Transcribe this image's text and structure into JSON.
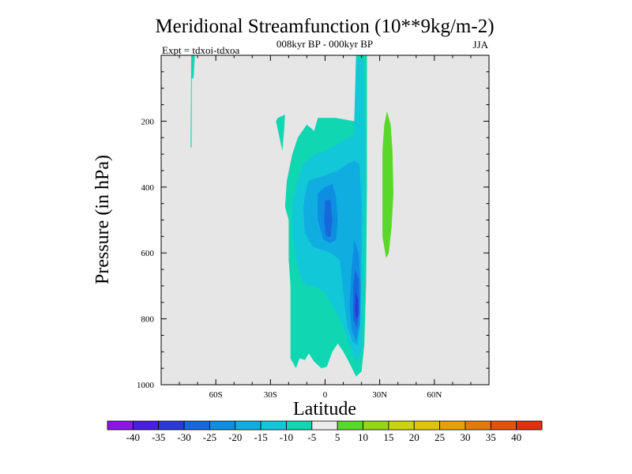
{
  "chart_data": {
    "type": "contour",
    "title": "Meridional Streamfunction (10**9kg/m-2)",
    "subtitle_center": "008kyr BP - 000kyr BP",
    "subtitle_left": "Expt = tdxoi-tdxoa",
    "subtitle_right": "JJA",
    "xlabel": "Latitude",
    "ylabel": "Pressure (in hPa)",
    "xlim": [
      -90,
      90
    ],
    "ylim": [
      1000,
      0
    ],
    "x_ticks": [
      {
        "value": -60,
        "label": "60S"
      },
      {
        "value": -30,
        "label": "30S"
      },
      {
        "value": 0,
        "label": "0"
      },
      {
        "value": 30,
        "label": "30N"
      },
      {
        "value": 60,
        "label": "60N"
      }
    ],
    "y_ticks": [
      {
        "value": 200,
        "label": "200"
      },
      {
        "value": 400,
        "label": "400"
      },
      {
        "value": 600,
        "label": "600"
      },
      {
        "value": 800,
        "label": "800"
      },
      {
        "value": 1000,
        "label": "1000"
      }
    ],
    "background_color": "#e6e6e6",
    "colorbar": {
      "labels": [
        "-40",
        "-35",
        "-30",
        "-25",
        "-20",
        "-15",
        "-10",
        "-5",
        "5",
        "10",
        "15",
        "20",
        "25",
        "30",
        "35",
        "40"
      ],
      "colors": [
        "#8c16e6",
        "#4a1ee0",
        "#2a3ad8",
        "#1668dc",
        "#0e8ee0",
        "#10aee0",
        "#12c8d8",
        "#10d6b2",
        "#ececec",
        "#5ad82a",
        "#92d614",
        "#cad310",
        "#e0c40c",
        "#e6a00a",
        "#e47a0a",
        "#e2520a",
        "#e0300c"
      ]
    },
    "regions": [
      {
        "level": -5,
        "color": "#10d6b2",
        "points": [
          [
            -73.5,
            0
          ],
          [
            -71.5,
            0
          ],
          [
            -72.2,
            70
          ],
          [
            -73.2,
            70
          ],
          [
            -73.3,
            280
          ],
          [
            -73.8,
            280
          ]
        ]
      },
      {
        "level": -5,
        "color": "#10d6b2",
        "points": [
          [
            -26,
            190
          ],
          [
            -22,
            180
          ],
          [
            -22.5,
            230
          ],
          [
            -23.5,
            290
          ],
          [
            -25,
            250
          ],
          [
            -27,
            200
          ]
        ]
      },
      {
        "level": -5,
        "color": "#10d6b2",
        "points": [
          [
            -4,
            190
          ],
          [
            6,
            190
          ],
          [
            16,
            200
          ],
          [
            17,
            0
          ],
          [
            23,
            0
          ],
          [
            23,
            400
          ],
          [
            22.5,
            700
          ],
          [
            21.5,
            880
          ],
          [
            20,
            960
          ],
          [
            17,
            975
          ],
          [
            13,
            930
          ],
          [
            10,
            900
          ],
          [
            7,
            875
          ],
          [
            4,
            900
          ],
          [
            1,
            945
          ],
          [
            -2,
            950
          ],
          [
            -6,
            930
          ],
          [
            -9,
            905
          ],
          [
            -11,
            925
          ],
          [
            -14,
            920
          ],
          [
            -16,
            950
          ],
          [
            -19,
            920
          ],
          [
            -19,
            700
          ],
          [
            -20,
            620
          ],
          [
            -20,
            500
          ],
          [
            -22,
            460
          ],
          [
            -21,
            380
          ],
          [
            -18,
            300
          ],
          [
            -15,
            250
          ],
          [
            -10,
            210
          ],
          [
            -6,
            230
          ]
        ]
      },
      {
        "level": -10,
        "color": "#12c8d8",
        "points": [
          [
            -12,
            330
          ],
          [
            -5,
            300
          ],
          [
            0,
            290
          ],
          [
            6,
            270
          ],
          [
            13,
            250
          ],
          [
            16,
            240
          ],
          [
            17,
            10
          ],
          [
            21,
            10
          ],
          [
            22,
            300
          ],
          [
            21,
            600
          ],
          [
            20.5,
            800
          ],
          [
            20,
            900
          ],
          [
            17,
            930
          ],
          [
            14,
            890
          ],
          [
            11,
            840
          ],
          [
            8,
            800
          ],
          [
            4,
            760
          ],
          [
            0,
            720
          ],
          [
            -6,
            700
          ],
          [
            -10,
            700
          ],
          [
            -13,
            680
          ],
          [
            -16,
            620
          ],
          [
            -18,
            540
          ],
          [
            -18,
            450
          ],
          [
            -15,
            380
          ]
        ]
      },
      {
        "level": -15,
        "color": "#10aee0",
        "points": [
          [
            -9,
            380
          ],
          [
            -3,
            370
          ],
          [
            2,
            360
          ],
          [
            7,
            350
          ],
          [
            12,
            330
          ],
          [
            16,
            320
          ],
          [
            19,
            330
          ],
          [
            20,
            450
          ],
          [
            20,
            620
          ],
          [
            19.5,
            800
          ],
          [
            18,
            880
          ],
          [
            15,
            870
          ],
          [
            12,
            820
          ],
          [
            10,
            720
          ],
          [
            8,
            620
          ],
          [
            3,
            600
          ],
          [
            -2,
            590
          ],
          [
            -7,
            580
          ],
          [
            -11,
            540
          ],
          [
            -12,
            470
          ],
          [
            -11,
            420
          ]
        ]
      },
      {
        "level": -20,
        "color": "#0e8ee0",
        "points": [
          [
            -4,
            420
          ],
          [
            0,
            400
          ],
          [
            4,
            390
          ],
          [
            6,
            430
          ],
          [
            7,
            500
          ],
          [
            6,
            560
          ],
          [
            3,
            570
          ],
          [
            -1,
            560
          ],
          [
            -4,
            500
          ]
        ]
      },
      {
        "level": -20,
        "color": "#0e8ee0",
        "points": [
          [
            16,
            560
          ],
          [
            18.5,
            600
          ],
          [
            19.5,
            700
          ],
          [
            19,
            820
          ],
          [
            17,
            870
          ],
          [
            14.5,
            830
          ],
          [
            13.5,
            760
          ],
          [
            14.5,
            650
          ]
        ]
      },
      {
        "level": -25,
        "color": "#1668dc",
        "points": [
          [
            0,
            440
          ],
          [
            3,
            440
          ],
          [
            4,
            500
          ],
          [
            3,
            550
          ],
          [
            0.5,
            550
          ],
          [
            -0.5,
            500
          ]
        ]
      },
      {
        "level": -25,
        "color": "#1668dc",
        "points": [
          [
            16.5,
            650
          ],
          [
            18.5,
            680
          ],
          [
            18.8,
            780
          ],
          [
            17.5,
            830
          ],
          [
            15.5,
            800
          ],
          [
            15.5,
            700
          ]
        ]
      },
      {
        "level": -30,
        "color": "#2a3ad8",
        "points": [
          [
            16.8,
            720
          ],
          [
            18.2,
            740
          ],
          [
            18.2,
            790
          ],
          [
            17,
            800
          ],
          [
            16.4,
            770
          ]
        ]
      },
      {
        "level": 10,
        "color": "#5ad82a",
        "points": [
          [
            34,
            170
          ],
          [
            36,
            210
          ],
          [
            37,
            290
          ],
          [
            37.5,
            420
          ],
          [
            36.5,
            520
          ],
          [
            35,
            600
          ],
          [
            33.5,
            615
          ],
          [
            31.5,
            550
          ],
          [
            31.5,
            420
          ],
          [
            31.5,
            290
          ],
          [
            32.5,
            210
          ]
        ]
      }
    ]
  }
}
